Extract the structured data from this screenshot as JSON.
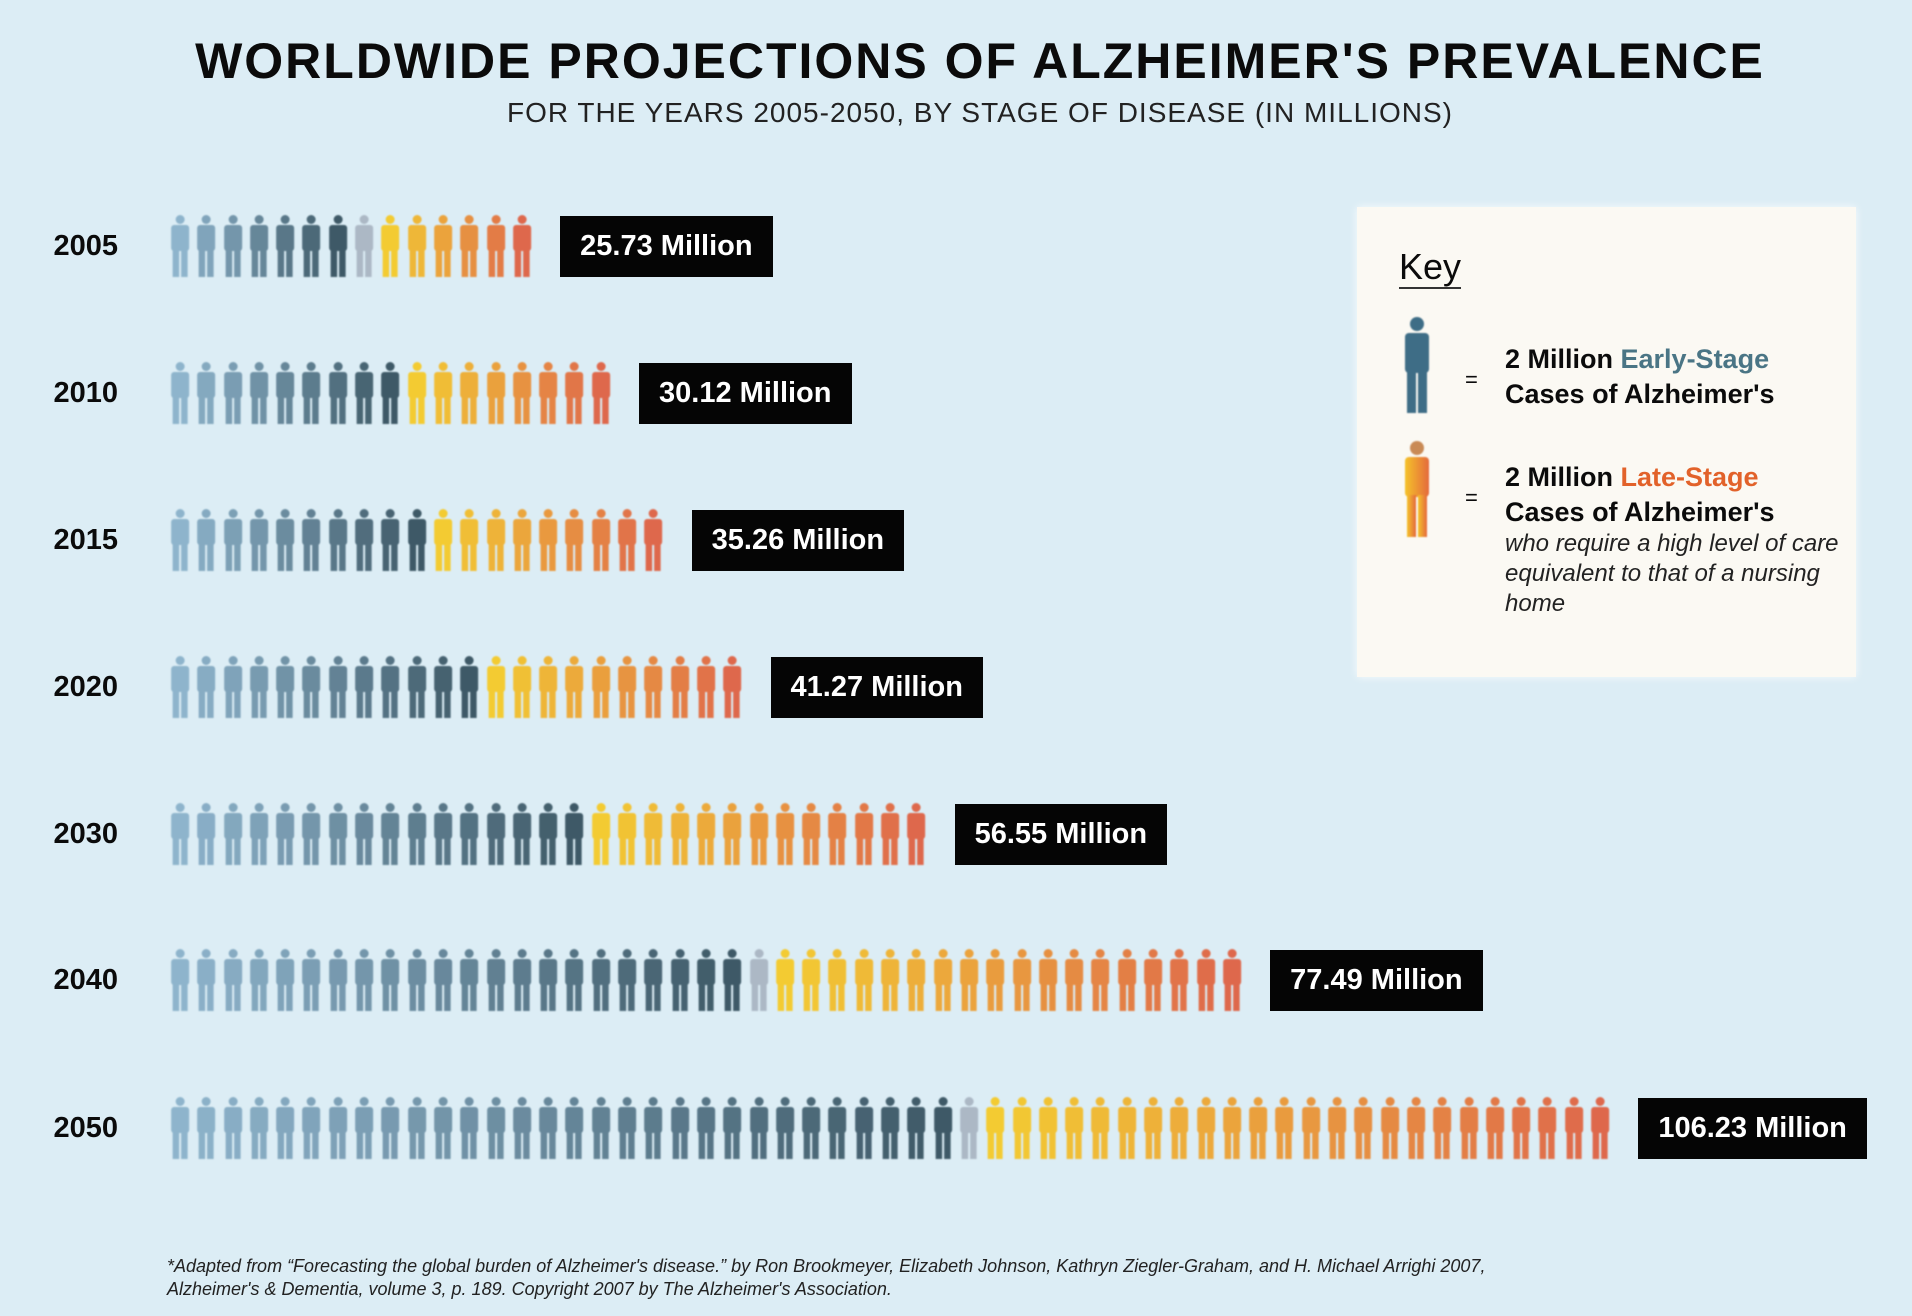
{
  "chart_data": {
    "type": "pictogram-bar",
    "title": "WORLDWIDE PROJECTIONS OF ALZHEIMER'S PREVALENCE",
    "subtitle": "FOR THE YEARS 2005-2050, BY STAGE OF DISEASE (IN MILLIONS)",
    "unit_per_figure_millions": 2,
    "rows": [
      {
        "year": "2005",
        "total": 25.73,
        "label": "25.73 Million",
        "early_figures": 7,
        "partial_figures": 1,
        "late_figures": 6
      },
      {
        "year": "2010",
        "total": 30.12,
        "label": "30.12 Million",
        "early_figures": 9,
        "partial_figures": 0,
        "late_figures": 8
      },
      {
        "year": "2015",
        "total": 35.26,
        "label": "35.26 Million",
        "early_figures": 10,
        "partial_figures": 0,
        "late_figures": 9
      },
      {
        "year": "2020",
        "total": 41.27,
        "label": "41.27 Million",
        "early_figures": 12,
        "partial_figures": 0,
        "late_figures": 10
      },
      {
        "year": "2030",
        "total": 56.55,
        "label": "56.55 Million",
        "early_figures": 16,
        "partial_figures": 0,
        "late_figures": 13
      },
      {
        "year": "2040",
        "total": 77.49,
        "label": "77.49 Million",
        "early_figures": 22,
        "partial_figures": 1,
        "late_figures": 18
      },
      {
        "year": "2050",
        "total": 106.23,
        "label": "106.23 Million",
        "early_figures": 30,
        "partial_figures": 1,
        "late_figures": 24
      }
    ],
    "colors": {
      "early_light": "#86aec8",
      "early_dark": "#2e4a58",
      "partial": "#a7b3c0",
      "late_light": "#f6c81e",
      "late_dark": "#df5a3a"
    }
  },
  "key": {
    "title": "Key",
    "early": {
      "prefix": "2 Million ",
      "stage": "Early-Stage",
      "line2": "Cases of Alzheimer's",
      "color": "#4a7585"
    },
    "late": {
      "prefix": "2 Million ",
      "stage": "Late-Stage",
      "line2": "Cases of Alzheimer's",
      "note": "who require a high level of care equivalent to that of a nursing home",
      "color": "#e2622a"
    },
    "equals": "="
  },
  "footnote": {
    "line1": "*Adapted from “Forecasting the global burden of Alzheimer's disease.” by Ron Brookmeyer, Elizabeth Johnson, Kathryn Ziegler-Graham, and H. Michael Arrighi 2007,",
    "line2": "Alzheimer's & Dementia, volume 3, p. 189. Copyright 2007 by The Alzheimer's Association."
  }
}
